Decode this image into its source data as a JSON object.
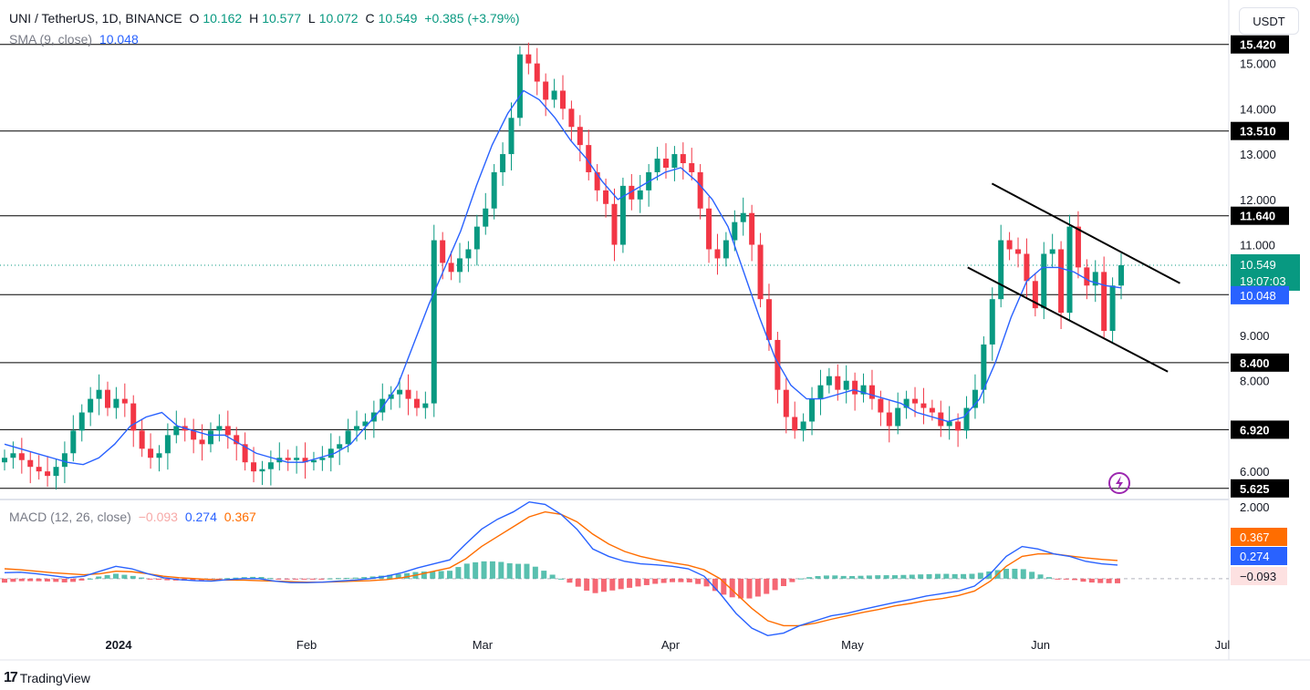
{
  "header": {
    "symbol": "UNI / TetherUS, 1D, BINANCE",
    "open_label": "O",
    "open": "10.162",
    "high_label": "H",
    "high": "10.577",
    "low_label": "L",
    "low": "10.072",
    "close_label": "C",
    "close": "10.549",
    "change": "+0.385 (+3.79%)",
    "sma_label": "SMA (9, close)",
    "sma_value": "10.048",
    "macd_label": "MACD (12, 26, close)",
    "macd_hist": "−0.093",
    "macd_line": "0.274",
    "macd_signal": "0.367"
  },
  "unit_button": "USDT",
  "footer": {
    "brand": "TradingView",
    "logo_icon": "tradingview-logo-icon"
  },
  "colors": {
    "up": "#089981",
    "down": "#f23645",
    "sma": "#2962ff",
    "macd": "#2962ff",
    "signal": "#ff6d00",
    "hist_pos": "#22ab94",
    "hist_neg": "#f23645",
    "lightning": "#9c27b0"
  },
  "chart_data": [
    {
      "type": "candlestick",
      "title": "UNI / TetherUS, 1D, BINANCE",
      "ylim": [
        5.4,
        16.4
      ],
      "y_ticks": [
        "15.000",
        "14.000",
        "13.000",
        "12.000",
        "11.000",
        "10.000",
        "9.000",
        "8.000",
        "6.000"
      ],
      "x_ticks": [
        "2024",
        "Feb",
        "Mar",
        "Apr",
        "May",
        "Jun",
        "Jul"
      ],
      "horizontal_levels": [
        "15.420",
        "13.510",
        "11.640",
        "9.900",
        "8.400",
        "6.920",
        "5.625"
      ],
      "price_tags": {
        "last_price": "10.549",
        "countdown": "19:07:03",
        "sma": "10.048",
        "last_price_value": 10.549,
        "sma_value": 10.048
      },
      "channel": {
        "upper": [
          [
            "2024-05-24",
            12.35
          ],
          [
            "2024-06-24",
            10.15
          ]
        ],
        "lower": [
          [
            "2024-05-20",
            10.5
          ],
          [
            "2024-06-22",
            8.2
          ]
        ]
      },
      "candles_start_date": "2023-12-07",
      "candle_close_path": [
        6.3,
        6.4,
        6.25,
        6.1,
        6.0,
        5.9,
        6.1,
        6.4,
        6.9,
        7.3,
        7.6,
        7.8,
        7.4,
        7.6,
        7.5,
        6.9,
        6.5,
        6.3,
        6.4,
        6.8,
        7.0,
        6.9,
        6.7,
        6.6,
        6.9,
        7.0,
        6.8,
        6.6,
        6.2,
        6.0,
        6.05,
        6.2,
        6.3,
        6.25,
        6.3,
        6.2,
        6.25,
        6.3,
        6.5,
        6.6,
        6.9,
        7.0,
        7.1,
        7.3,
        7.6,
        7.7,
        7.8,
        7.6,
        7.4,
        7.5,
        11.1,
        10.6,
        10.4,
        10.7,
        10.9,
        11.4,
        11.8,
        12.6,
        13.0,
        13.8,
        15.2,
        15.0,
        14.6,
        14.2,
        14.4,
        14.0,
        13.6,
        13.2,
        12.6,
        12.2,
        11.9,
        11.0,
        12.3,
        12.0,
        12.2,
        12.6,
        12.9,
        12.7,
        13.0,
        12.8,
        12.6,
        11.8,
        10.9,
        10.7,
        11.1,
        11.5,
        11.7,
        11.0,
        9.8,
        8.9,
        7.8,
        7.2,
        6.9,
        7.1,
        7.6,
        7.9,
        8.1,
        7.8,
        8.0,
        7.7,
        7.9,
        7.6,
        7.3,
        7.0,
        7.4,
        7.6,
        7.5,
        7.4,
        7.3,
        7.0,
        7.1,
        6.9,
        7.4,
        7.8,
        8.8,
        9.8,
        11.1,
        10.9,
        10.8,
        10.2,
        9.6,
        10.8,
        10.9,
        9.5,
        11.4,
        10.5,
        10.1,
        10.4,
        9.1,
        10.1,
        10.549
      ],
      "sma9_path": [
        6.6,
        6.5,
        6.4,
        6.3,
        6.2,
        6.15,
        6.3,
        6.6,
        7.0,
        7.2,
        7.3,
        7.0,
        6.9,
        6.8,
        6.8,
        6.6,
        6.4,
        6.3,
        6.2,
        6.2,
        6.3,
        6.4,
        6.6,
        7.0,
        7.4,
        7.9,
        8.8,
        9.7,
        10.5,
        11.3,
        12.3,
        13.2,
        13.9,
        14.4,
        14.2,
        13.8,
        13.3,
        12.9,
        12.4,
        12.0,
        12.2,
        12.4,
        12.6,
        12.7,
        12.4,
        12.0,
        11.4,
        10.4,
        9.4,
        8.5,
        7.9,
        7.6,
        7.6,
        7.7,
        7.8,
        7.7,
        7.6,
        7.5,
        7.3,
        7.2,
        7.1,
        7.2,
        7.6,
        8.4,
        9.4,
        10.2,
        10.5,
        10.5,
        10.4,
        10.2,
        10.1,
        10.048
      ],
      "series": [
        {
          "name": "SMA (9, close)",
          "last": 10.048
        }
      ]
    },
    {
      "type": "macd",
      "title": "MACD (12, 26, close)",
      "ylim": [
        -1.2,
        1.6
      ],
      "y_ticks": [
        "2.000"
      ],
      "series": [
        {
          "name": "MACD",
          "last": 0.274
        },
        {
          "name": "Signal",
          "last": 0.367
        },
        {
          "name": "Histogram",
          "last": -0.093
        }
      ],
      "macd_path": [
        0.12,
        0.13,
        0.1,
        0.06,
        0.02,
        0.05,
        0.15,
        0.25,
        0.2,
        0.1,
        0.02,
        -0.02,
        -0.04,
        -0.05,
        -0.02,
        0.0,
        0.0,
        -0.05,
        -0.08,
        -0.08,
        -0.07,
        -0.05,
        -0.03,
        0.0,
        0.05,
        0.12,
        0.22,
        0.3,
        0.38,
        0.7,
        1.0,
        1.2,
        1.35,
        1.55,
        1.5,
        1.3,
        1.0,
        0.6,
        0.45,
        0.35,
        0.3,
        0.28,
        0.25,
        0.2,
        0.05,
        -0.3,
        -0.7,
        -1.0,
        -1.15,
        -1.1,
        -0.95,
        -0.85,
        -0.75,
        -0.7,
        -0.62,
        -0.55,
        -0.48,
        -0.42,
        -0.35,
        -0.3,
        -0.25,
        -0.15,
        0.1,
        0.45,
        0.65,
        0.6,
        0.5,
        0.45,
        0.35,
        0.3,
        0.274
      ],
      "signal_path": [
        0.2,
        0.18,
        0.15,
        0.12,
        0.1,
        0.08,
        0.1,
        0.15,
        0.14,
        0.1,
        0.05,
        0.02,
        0.0,
        -0.02,
        -0.03,
        -0.03,
        -0.04,
        -0.05,
        -0.06,
        -0.07,
        -0.07,
        -0.06,
        -0.05,
        -0.04,
        -0.02,
        0.02,
        0.08,
        0.15,
        0.22,
        0.4,
        0.65,
        0.85,
        1.05,
        1.25,
        1.35,
        1.3,
        1.15,
        0.9,
        0.7,
        0.55,
        0.45,
        0.38,
        0.32,
        0.27,
        0.18,
        0.0,
        -0.3,
        -0.6,
        -0.85,
        -0.95,
        -0.95,
        -0.9,
        -0.82,
        -0.75,
        -0.68,
        -0.62,
        -0.55,
        -0.5,
        -0.44,
        -0.4,
        -0.34,
        -0.25,
        -0.05,
        0.25,
        0.45,
        0.5,
        0.5,
        0.46,
        0.42,
        0.39,
        0.367
      ]
    }
  ]
}
